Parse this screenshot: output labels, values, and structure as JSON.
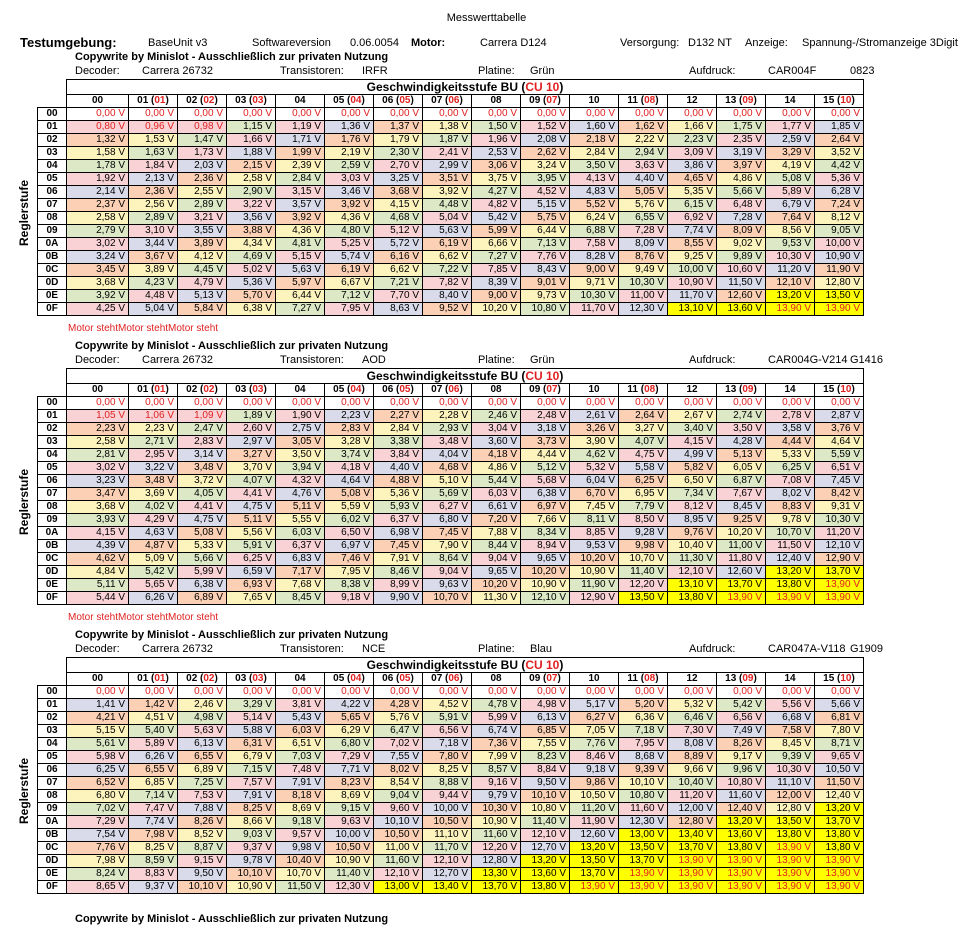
{
  "title": "Messwerttabelle",
  "testumgebung": {
    "label": "Testumgebung:",
    "base": "BaseUnit v3",
    "sw_label": "Softwareversion",
    "sw_value": "0.06.0054",
    "motor_label": "Motor:",
    "motor_value": "Carrera D124",
    "versorgung_label": "Versorgung:",
    "versorgung_value": "D132 NT",
    "anzeige_label": "Anzeige:",
    "anzeige_value": "Spannung-/Stromanzeige 3Digit"
  },
  "copyright": "Copywrite by Minislot - Ausschließlich zur privaten Nutzung",
  "labels": {
    "decoder": "Decoder:",
    "transistoren": "Transistoren:",
    "platine": "Platine:",
    "aufdruck": "Aufdruck:",
    "table_title_main": "Geschwindigkeitsstufe BU (",
    "table_title_cu": "CU 10",
    "table_title_end": ")",
    "side": "Reglerstufe"
  },
  "columns": [
    {
      "main": "00",
      "cu": ""
    },
    {
      "main": "01 (",
      "cu": "01"
    },
    {
      "main": "02 (",
      "cu": "02"
    },
    {
      "main": "03 (",
      "cu": "03"
    },
    {
      "main": "04",
      "cu": ""
    },
    {
      "main": "05 (",
      "cu": "04"
    },
    {
      "main": "06 (",
      "cu": "05"
    },
    {
      "main": "07 (",
      "cu": "06"
    },
    {
      "main": "08",
      "cu": ""
    },
    {
      "main": "09 (",
      "cu": "07"
    },
    {
      "main": "10",
      "cu": ""
    },
    {
      "main": "11 (",
      "cu": "08"
    },
    {
      "main": "12",
      "cu": ""
    },
    {
      "main": "13 (",
      "cu": "09"
    },
    {
      "main": "14",
      "cu": ""
    },
    {
      "main": "15 (",
      "cu": "10"
    }
  ],
  "row_labels": [
    "00",
    "01",
    "02",
    "03",
    "04",
    "05",
    "06",
    "07",
    "08",
    "09",
    "0A",
    "0B",
    "0C",
    "0D",
    "0E",
    "0F"
  ],
  "tables": [
    {
      "decoder": "Carrera 26732",
      "transistoren": "IRFR",
      "platine": "Grün",
      "aufdruck": "CAR004F",
      "code": "0823",
      "motor_note": "Motor stehtMotor stehtMotor steht",
      "rows": [
        [
          "0,00 V",
          "0,00 V",
          "0,00 V",
          "0,00 V",
          "0,00 V",
          "0,00 V",
          "0,00 V",
          "0,00 V",
          "0,00 V",
          "0,00 V",
          "0,00 V",
          "0,00 V",
          "0,00 V",
          "0,00 V",
          "0,00 V",
          "0,00 V"
        ],
        [
          "0,80 V",
          "0,96 V",
          "0,98 V",
          "1,15 V",
          "1,19 V",
          "1,36 V",
          "1,37 V",
          "1,38 V",
          "1,50 V",
          "1,52 V",
          "1,60 V",
          "1,62 V",
          "1,66 V",
          "1,75 V",
          "1,77 V",
          "1,85 V"
        ],
        [
          "1,32 V",
          "1,53 V",
          "1,47 V",
          "1,66 V",
          "1,71 V",
          "1,76 V",
          "1,79 V",
          "1,87 V",
          "1,96 V",
          "2,08 V",
          "2,18 V",
          "2,22 V",
          "2,23 V",
          "2,35 V",
          "2,59 V",
          "2,64 V"
        ],
        [
          "1,58 V",
          "1,63 V",
          "1,73 V",
          "1,88 V",
          "1,99 V",
          "2,19 V",
          "2,30 V",
          "2,41 V",
          "2,53 V",
          "2,62 V",
          "2,84 V",
          "2,94 V",
          "3,09 V",
          "3,19 V",
          "3,29 V",
          "3,52 V"
        ],
        [
          "1,78 V",
          "1,84 V",
          "2,03 V",
          "2,15 V",
          "2,39 V",
          "2,59 V",
          "2,70 V",
          "2,99 V",
          "3,06 V",
          "3,24 V",
          "3,50 V",
          "3,63 V",
          "3,86 V",
          "3,97 V",
          "4,19 V",
          "4,42 V"
        ],
        [
          "1,92 V",
          "2,13 V",
          "2,36 V",
          "2,58 V",
          "2,84 V",
          "3,03 V",
          "3,25 V",
          "3,51 V",
          "3,75 V",
          "3,95 V",
          "4,13 V",
          "4,40 V",
          "4,65 V",
          "4,86 V",
          "5,08 V",
          "5,36 V"
        ],
        [
          "2,14 V",
          "2,36 V",
          "2,55 V",
          "2,90 V",
          "3,15 V",
          "3,46 V",
          "3,68 V",
          "3,92 V",
          "4,27 V",
          "4,52 V",
          "4,83 V",
          "5,05 V",
          "5,35 V",
          "5,66 V",
          "5,89 V",
          "6,28 V"
        ],
        [
          "2,37 V",
          "2,56 V",
          "2,89 V",
          "3,22 V",
          "3,57 V",
          "3,92 V",
          "4,15 V",
          "4,48 V",
          "4,82 V",
          "5,15 V",
          "5,52 V",
          "5,76 V",
          "6,15 V",
          "6,48 V",
          "6,79 V",
          "7,24 V"
        ],
        [
          "2,58 V",
          "2,89 V",
          "3,21 V",
          "3,56 V",
          "3,92 V",
          "4,36 V",
          "4,68 V",
          "5,04 V",
          "5,42 V",
          "5,75 V",
          "6,24 V",
          "6,55 V",
          "6,92 V",
          "7,28 V",
          "7,64 V",
          "8,12 V"
        ],
        [
          "2,79 V",
          "3,10 V",
          "3,55 V",
          "3,88 V",
          "4,36 V",
          "4,80 V",
          "5,12 V",
          "5,63 V",
          "5,99 V",
          "6,44 V",
          "6,88 V",
          "7,28 V",
          "7,74 V",
          "8,09 V",
          "8,56 V",
          "9,05 V"
        ],
        [
          "3,02 V",
          "3,44 V",
          "3,89 V",
          "4,34 V",
          "4,81 V",
          "5,25 V",
          "5,72 V",
          "6,19 V",
          "6,66 V",
          "7,13 V",
          "7,58 V",
          "8,09 V",
          "8,55 V",
          "9,02 V",
          "9,53 V",
          "10,00 V"
        ],
        [
          "3,24 V",
          "3,67 V",
          "4,12 V",
          "4,69 V",
          "5,15 V",
          "5,74 V",
          "6,16 V",
          "6,62 V",
          "7,27 V",
          "7,76 V",
          "8,28 V",
          "8,76 V",
          "9,25 V",
          "9,89 V",
          "10,30 V",
          "10,90 V"
        ],
        [
          "3,45 V",
          "3,89 V",
          "4,45 V",
          "5,02 V",
          "5,63 V",
          "6,19 V",
          "6,62 V",
          "7,22 V",
          "7,85 V",
          "8,43 V",
          "9,00 V",
          "9,49 V",
          "10,00 V",
          "10,60 V",
          "11,20 V",
          "11,90 V"
        ],
        [
          "3,68 V",
          "4,23 V",
          "4,79 V",
          "5,36 V",
          "5,97 V",
          "6,67 V",
          "7,21 V",
          "7,82 V",
          "8,39 V",
          "9,01 V",
          "9,71 V",
          "10,30 V",
          "10,90 V",
          "11,50 V",
          "12,10 V",
          "12,80 V"
        ],
        [
          "3,92 V",
          "4,48 V",
          "5,13 V",
          "5,70 V",
          "6,44 V",
          "7,12 V",
          "7,70 V",
          "8,40 V",
          "9,00 V",
          "9,73 V",
          "10,30 V",
          "11,00 V",
          "11,70 V",
          "12,60 V",
          "13,20 V",
          "13,50 V"
        ],
        [
          "4,25 V",
          "5,04 V",
          "5,84 V",
          "6,38 V",
          "7,27 V",
          "7,95 V",
          "8,63 V",
          "9,52 V",
          "10,20 V",
          "10,80 V",
          "11,70 V",
          "12,30 V",
          "13,10 V",
          "13,60 V",
          "13,90 V",
          "13,90 V"
        ]
      ]
    },
    {
      "decoder": "Carrera 26732",
      "transistoren": "AOD",
      "platine": "Grün",
      "aufdruck": "CAR004G-V214",
      "code": "G1416",
      "motor_note": "Motor stehtMotor stehtMotor steht",
      "rows": [
        [
          "0,00 V",
          "0,00 V",
          "0,00 V",
          "0,00 V",
          "0,00 V",
          "0,00 V",
          "0,00 V",
          "0,00 V",
          "0,00 V",
          "0,00 V",
          "0,00 V",
          "0,00 V",
          "0,00 V",
          "0,00 V",
          "0,00 V",
          "0,00 V"
        ],
        [
          "1,05 V",
          "1,06 V",
          "1,09 V",
          "1,89 V",
          "1,90 V",
          "2,23 V",
          "2,27 V",
          "2,28 V",
          "2,46 V",
          "2,48 V",
          "2,61 V",
          "2,64 V",
          "2,67 V",
          "2,74 V",
          "2,78 V",
          "2,87 V"
        ],
        [
          "2,23 V",
          "2,23 V",
          "2,47 V",
          "2,60 V",
          "2,75 V",
          "2,83 V",
          "2,84 V",
          "2,93 V",
          "3,04 V",
          "3,18 V",
          "3,26 V",
          "3,27 V",
          "3,40 V",
          "3,50 V",
          "3,58 V",
          "3,76 V"
        ],
        [
          "2,58 V",
          "2,71 V",
          "2,83 V",
          "2,97 V",
          "3,05 V",
          "3,28 V",
          "3,38 V",
          "3,48 V",
          "3,60 V",
          "3,73 V",
          "3,90 V",
          "4,07 V",
          "4,15 V",
          "4,28 V",
          "4,44 V",
          "4,64 V"
        ],
        [
          "2,81 V",
          "2,95 V",
          "3,14 V",
          "3,27 V",
          "3,50 V",
          "3,74 V",
          "3,84 V",
          "4,04 V",
          "4,18 V",
          "4,44 V",
          "4,62 V",
          "4,75 V",
          "4,99 V",
          "5,13 V",
          "5,33 V",
          "5,59 V"
        ],
        [
          "3,02 V",
          "3,22 V",
          "3,48 V",
          "3,70 V",
          "3,94 V",
          "4,18 V",
          "4,40 V",
          "4,68 V",
          "4,86 V",
          "5,12 V",
          "5,32 V",
          "5,58 V",
          "5,82 V",
          "6,05 V",
          "6,25 V",
          "6,51 V"
        ],
        [
          "3,23 V",
          "3,48 V",
          "3,72 V",
          "4,07 V",
          "4,32 V",
          "4,64 V",
          "4,88 V",
          "5,10 V",
          "5,44 V",
          "5,68 V",
          "6,04 V",
          "6,25 V",
          "6,50 V",
          "6,87 V",
          "7,08 V",
          "7,45 V"
        ],
        [
          "3,47 V",
          "3,69 V",
          "4,05 V",
          "4,41 V",
          "4,76 V",
          "5,08 V",
          "5,36 V",
          "5,69 V",
          "6,03 V",
          "6,38 V",
          "6,70 V",
          "6,95 V",
          "7,34 V",
          "7,67 V",
          "8,02 V",
          "8,42 V"
        ],
        [
          "3,68 V",
          "4,02 V",
          "4,41 V",
          "4,75 V",
          "5,11 V",
          "5,59 V",
          "5,93 V",
          "6,27 V",
          "6,61 V",
          "6,97 V",
          "7,45 V",
          "7,79 V",
          "8,12 V",
          "8,45 V",
          "8,83 V",
          "9,31 V"
        ],
        [
          "3,93 V",
          "4,29 V",
          "4,75 V",
          "5,11 V",
          "5,55 V",
          "6,02 V",
          "6,37 V",
          "6,80 V",
          "7,20 V",
          "7,66 V",
          "8,11 V",
          "8,50 V",
          "8,95 V",
          "9,25 V",
          "9,78 V",
          "10,30 V"
        ],
        [
          "4,15 V",
          "4,63 V",
          "5,08 V",
          "5,56 V",
          "6,03 V",
          "6,50 V",
          "6,98 V",
          "7,45 V",
          "7,88 V",
          "8,34 V",
          "8,85 V",
          "9,28 V",
          "9,76 V",
          "10,20 V",
          "10,70 V",
          "11,20 V"
        ],
        [
          "4,39 V",
          "4,87 V",
          "5,33 V",
          "5,91 V",
          "6,37 V",
          "6,97 V",
          "7,45 V",
          "7,90 V",
          "8,44 V",
          "8,94 V",
          "9,53 V",
          "9,98 V",
          "10,40 V",
          "11,00 V",
          "11,50 V",
          "12,10 V"
        ],
        [
          "4,62 V",
          "5,09 V",
          "5,66 V",
          "6,25 V",
          "6,83 V",
          "7,46 V",
          "7,91 V",
          "8,64 V",
          "9,04 V",
          "9,65 V",
          "10,20 V",
          "10,70 V",
          "11,30 V",
          "11,80 V",
          "12,40 V",
          "12,90 V"
        ],
        [
          "4,84 V",
          "5,42 V",
          "5,99 V",
          "6,59 V",
          "7,17 V",
          "7,95 V",
          "8,46 V",
          "9,04 V",
          "9,65 V",
          "10,20 V",
          "10,90 V",
          "11,40 V",
          "12,10 V",
          "12,60 V",
          "13,20 V",
          "13,70 V"
        ],
        [
          "5,11 V",
          "5,65 V",
          "6,38 V",
          "6,93 V",
          "7,68 V",
          "8,38 V",
          "8,99 V",
          "9,63 V",
          "10,20 V",
          "10,90 V",
          "11,90 V",
          "12,20 V",
          "13,10 V",
          "13,70 V",
          "13,80 V",
          "13,90 V"
        ],
        [
          "5,44 V",
          "6,26 V",
          "6,89 V",
          "7,65 V",
          "8,45 V",
          "9,18 V",
          "9,90 V",
          "10,70 V",
          "11,30 V",
          "12,10 V",
          "12,90 V",
          "13,50 V",
          "13,80 V",
          "13,90 V",
          "13,90 V",
          "13,90 V"
        ]
      ]
    },
    {
      "decoder": "Carrera 26732",
      "transistoren": "NCE",
      "platine": "Blau",
      "aufdruck": "CAR047A-V118",
      "code": "G1909",
      "motor_note": "",
      "rows": [
        [
          "0,00 V",
          "0,00 V",
          "0,00 V",
          "0,00 V",
          "0,00 V",
          "0,00 V",
          "0,00 V",
          "0,00 V",
          "0,00 V",
          "0,00 V",
          "0,00 V",
          "0,00 V",
          "0,00 V",
          "0,00 V",
          "0,00 V",
          "0,00 V"
        ],
        [
          "1,41 V",
          "1,42 V",
          "2,46 V",
          "3,29 V",
          "3,81 V",
          "4,22 V",
          "4,28 V",
          "4,52 V",
          "4,78 V",
          "4,98 V",
          "5,17 V",
          "5,20 V",
          "5,32 V",
          "5,42 V",
          "5,56 V",
          "5,66 V"
        ],
        [
          "4,21 V",
          "4,51 V",
          "4,98 V",
          "5,14 V",
          "5,43 V",
          "5,65 V",
          "5,76 V",
          "5,91 V",
          "5,99 V",
          "6,13 V",
          "6,27 V",
          "6,36 V",
          "6,46 V",
          "6,56 V",
          "6,68 V",
          "6,81 V"
        ],
        [
          "5,15 V",
          "5,40 V",
          "5,63 V",
          "5,88 V",
          "6,03 V",
          "6,29 V",
          "6,47 V",
          "6,56 V",
          "6,74 V",
          "6,85 V",
          "7,05 V",
          "7,18 V",
          "7,30 V",
          "7,49 V",
          "7,58 V",
          "7,80 V"
        ],
        [
          "5,61 V",
          "5,89 V",
          "6,13 V",
          "6,31 V",
          "6,51 V",
          "6,80 V",
          "7,02 V",
          "7,18 V",
          "7,36 V",
          "7,55 V",
          "7,76 V",
          "7,95 V",
          "8,08 V",
          "8,26 V",
          "8,45 V",
          "8,71 V"
        ],
        [
          "5,98 V",
          "6,26 V",
          "6,55 V",
          "6,79 V",
          "7,03 V",
          "7,29 V",
          "7,55 V",
          "7,80 V",
          "7,99 V",
          "8,23 V",
          "8,46 V",
          "8,68 V",
          "8,89 V",
          "9,17 V",
          "9,39 V",
          "9,65 V"
        ],
        [
          "6,25 V",
          "6,55 V",
          "6,89 V",
          "7,15 V",
          "7,48 V",
          "7,71 V",
          "8,02 V",
          "8,25 V",
          "8,57 V",
          "8,84 V",
          "9,18 V",
          "9,39 V",
          "9,66 V",
          "9,96 V",
          "10,30 V",
          "10,50 V"
        ],
        [
          "6,52 V",
          "6,85 V",
          "7,25 V",
          "7,57 V",
          "7,91 V",
          "8,23 V",
          "8,54 V",
          "8,88 V",
          "9,16 V",
          "9,50 V",
          "9,86 V",
          "10,10 V",
          "10,40 V",
          "10,80 V",
          "11,10 V",
          "11,50 V"
        ],
        [
          "6,80 V",
          "7,14 V",
          "7,53 V",
          "7,91 V",
          "8,18 V",
          "8,69 V",
          "9,04 V",
          "9,44 V",
          "9,79 V",
          "10,10 V",
          "10,50 V",
          "10,80 V",
          "11,20 V",
          "11,60 V",
          "12,00 V",
          "12,40 V"
        ],
        [
          "7,02 V",
          "7,47 V",
          "7,88 V",
          "8,25 V",
          "8,69 V",
          "9,15 V",
          "9,60 V",
          "10,00 V",
          "10,30 V",
          "10,80 V",
          "11,20 V",
          "11,60 V",
          "12,00 V",
          "12,40 V",
          "12,80 V",
          "13,20 V"
        ],
        [
          "7,29 V",
          "7,74 V",
          "8,26 V",
          "8,66 V",
          "9,18 V",
          "9,63 V",
          "10,10 V",
          "10,50 V",
          "10,90 V",
          "11,40 V",
          "11,90 V",
          "12,30 V",
          "12,80 V",
          "13,20 V",
          "13,50 V",
          "13,70 V"
        ],
        [
          "7,54 V",
          "7,98 V",
          "8,52 V",
          "9,03 V",
          "9,57 V",
          "10,00 V",
          "10,50 V",
          "11,10 V",
          "11,60 V",
          "12,10 V",
          "12,60 V",
          "13,00 V",
          "13,40 V",
          "13,60 V",
          "13,80 V",
          "13,80 V"
        ],
        [
          "7,76 V",
          "8,25 V",
          "8,87 V",
          "9,37 V",
          "9,98 V",
          "10,50 V",
          "11,00 V",
          "11,70 V",
          "12,20 V",
          "12,70 V",
          "13,20 V",
          "13,50 V",
          "13,70 V",
          "13,80 V",
          "13,90 V",
          "13,80 V"
        ],
        [
          "7,98 V",
          "8,59 V",
          "9,15 V",
          "9,78 V",
          "10,40 V",
          "10,90 V",
          "11,60 V",
          "12,10 V",
          "12,80 V",
          "13,20 V",
          "13,50 V",
          "13,70 V",
          "13,90 V",
          "13,90 V",
          "13,90 V",
          "13,90 V"
        ],
        [
          "8,24 V",
          "8,83 V",
          "9,50 V",
          "10,10 V",
          "10,70 V",
          "11,40 V",
          "12,10 V",
          "12,70 V",
          "13,30 V",
          "13,60 V",
          "13,70 V",
          "13,90 V",
          "13,90 V",
          "13,90 V",
          "13,90 V",
          "13,90 V"
        ],
        [
          "8,65 V",
          "9,37 V",
          "10,10 V",
          "10,90 V",
          "11,50 V",
          "12,30 V",
          "13,00 V",
          "13,40 V",
          "13,70 V",
          "13,80 V",
          "13,90 V",
          "13,90 V",
          "13,90 V",
          "13,90 V",
          "13,90 V",
          "13,90 V"
        ]
      ]
    }
  ]
}
